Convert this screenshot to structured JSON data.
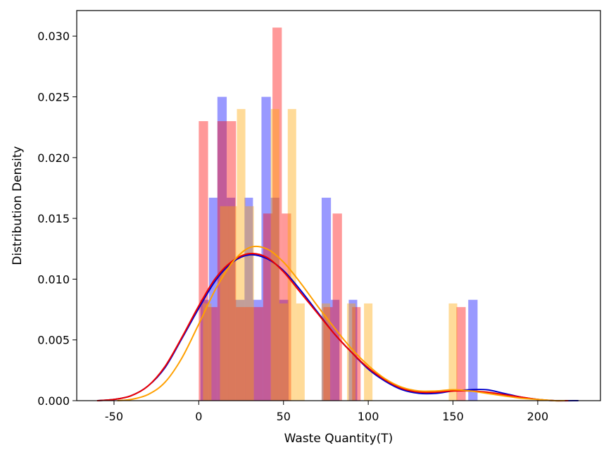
{
  "chart_data": {
    "type": "histogram+kde",
    "xlabel": "Waste Quantity(T)",
    "ylabel": "Distribution Density",
    "xlim": [
      -72,
      237
    ],
    "ylim": [
      0,
      0.0321
    ],
    "x_ticks": [
      -50,
      0,
      50,
      100,
      150,
      200
    ],
    "y_ticks": [
      0.0,
      0.005,
      0.01,
      0.015,
      0.02,
      0.025,
      0.03
    ],
    "x_tick_labels": [
      "-50",
      "0",
      "50",
      "100",
      "150",
      "200"
    ],
    "y_tick_labels": [
      "0.000",
      "0.005",
      "0.010",
      "0.015",
      "0.020",
      "0.025",
      "0.030"
    ],
    "grid": false,
    "series": [
      {
        "color": "#0000ff",
        "hist_opacity": 0.4,
        "bins": [
          {
            "x0": 1.0,
            "x1": 6.0,
            "density": 0.0083
          },
          {
            "x0": 6.0,
            "x1": 11.0,
            "density": 0.0167
          },
          {
            "x0": 11.0,
            "x1": 16.5,
            "density": 0.025
          },
          {
            "x0": 16.5,
            "x1": 21.5,
            "density": 0.0167
          },
          {
            "x0": 21.5,
            "x1": 27.0,
            "density": 0.0083
          },
          {
            "x0": 27.0,
            "x1": 32.0,
            "density": 0.0167
          },
          {
            "x0": 32.0,
            "x1": 37.0,
            "density": 0.0083
          },
          {
            "x0": 37.0,
            "x1": 42.5,
            "density": 0.025
          },
          {
            "x0": 42.5,
            "x1": 47.5,
            "density": 0.0167
          },
          {
            "x0": 47.5,
            "x1": 53.0,
            "density": 0.0083
          },
          {
            "x0": 72.5,
            "x1": 78.0,
            "density": 0.0167
          },
          {
            "x0": 78.0,
            "x1": 83.0,
            "density": 0.0083
          },
          {
            "x0": 88.5,
            "x1": 93.5,
            "density": 0.0083
          },
          {
            "x0": 159.0,
            "x1": 164.5,
            "density": 0.0083
          }
        ],
        "kde_color": "#0000cc",
        "kde": [
          [
            -60,
            0.0
          ],
          [
            -50,
            0.0001
          ],
          [
            -40,
            0.0004
          ],
          [
            -30,
            0.0012
          ],
          [
            -20,
            0.0027
          ],
          [
            -10,
            0.0051
          ],
          [
            0,
            0.0076
          ],
          [
            10,
            0.0099
          ],
          [
            20,
            0.0114
          ],
          [
            30,
            0.012
          ],
          [
            40,
            0.0117
          ],
          [
            50,
            0.0107
          ],
          [
            60,
            0.0091
          ],
          [
            70,
            0.0073
          ],
          [
            80,
            0.0055
          ],
          [
            90,
            0.004
          ],
          [
            100,
            0.0026
          ],
          [
            110,
            0.0016
          ],
          [
            120,
            0.0009
          ],
          [
            130,
            0.0006
          ],
          [
            140,
            0.0006
          ],
          [
            150,
            0.0008
          ],
          [
            160,
            0.0009
          ],
          [
            170,
            0.0009
          ],
          [
            180,
            0.0006
          ],
          [
            190,
            0.0003
          ],
          [
            200,
            0.0001
          ],
          [
            210,
            0.0
          ],
          [
            224,
            0.0
          ]
        ]
      },
      {
        "color": "#ff0000",
        "hist_opacity": 0.4,
        "bins": [
          {
            "x0": 0.0,
            "x1": 5.5,
            "density": 0.023
          },
          {
            "x0": 5.5,
            "x1": 11.0,
            "density": 0.0077
          },
          {
            "x0": 11.0,
            "x1": 16.5,
            "density": 0.023
          },
          {
            "x0": 16.5,
            "x1": 22.0,
            "density": 0.023
          },
          {
            "x0": 22.0,
            "x1": 27.5,
            "density": 0.0077
          },
          {
            "x0": 27.5,
            "x1": 32.5,
            "density": 0.0077
          },
          {
            "x0": 32.5,
            "x1": 38.0,
            "density": 0.0077
          },
          {
            "x0": 38.0,
            "x1": 43.5,
            "density": 0.0154
          },
          {
            "x0": 43.5,
            "x1": 49.0,
            "density": 0.0307
          },
          {
            "x0": 49.0,
            "x1": 54.5,
            "density": 0.0154
          },
          {
            "x0": 73.5,
            "x1": 79.0,
            "density": 0.0077
          },
          {
            "x0": 79.0,
            "x1": 84.5,
            "density": 0.0154
          },
          {
            "x0": 90.5,
            "x1": 95.5,
            "density": 0.0077
          },
          {
            "x0": 152.0,
            "x1": 157.5,
            "density": 0.0077
          }
        ],
        "kde_color": "#ee0000",
        "kde": [
          [
            -60,
            0.0
          ],
          [
            -50,
            0.0001
          ],
          [
            -40,
            0.0004
          ],
          [
            -30,
            0.0012
          ],
          [
            -20,
            0.0028
          ],
          [
            -10,
            0.0052
          ],
          [
            0,
            0.0078
          ],
          [
            10,
            0.0101
          ],
          [
            20,
            0.0115
          ],
          [
            30,
            0.0121
          ],
          [
            40,
            0.0118
          ],
          [
            50,
            0.0106
          ],
          [
            60,
            0.0089
          ],
          [
            70,
            0.0072
          ],
          [
            80,
            0.0055
          ],
          [
            90,
            0.004
          ],
          [
            100,
            0.0027
          ],
          [
            110,
            0.0017
          ],
          [
            120,
            0.001
          ],
          [
            130,
            0.0007
          ],
          [
            140,
            0.0007
          ],
          [
            150,
            0.0008
          ],
          [
            160,
            0.0008
          ],
          [
            170,
            0.0007
          ],
          [
            180,
            0.0005
          ],
          [
            190,
            0.0003
          ],
          [
            200,
            0.0001
          ],
          [
            210,
            0.0
          ],
          [
            218,
            0.0
          ]
        ]
      },
      {
        "color": "#ffa500",
        "hist_opacity": 0.4,
        "bins": [
          {
            "x0": 2.5,
            "x1": 7.5,
            "density": 0.008
          },
          {
            "x0": 12.5,
            "x1": 17.5,
            "density": 0.016
          },
          {
            "x0": 17.5,
            "x1": 22.5,
            "density": 0.016
          },
          {
            "x0": 22.5,
            "x1": 27.5,
            "density": 0.024
          },
          {
            "x0": 27.5,
            "x1": 32.5,
            "density": 0.016
          },
          {
            "x0": 42.5,
            "x1": 47.5,
            "density": 0.024
          },
          {
            "x0": 47.5,
            "x1": 52.5,
            "density": 0.008
          },
          {
            "x0": 52.5,
            "x1": 57.5,
            "density": 0.024
          },
          {
            "x0": 57.5,
            "x1": 62.5,
            "density": 0.008
          },
          {
            "x0": 72.5,
            "x1": 77.5,
            "density": 0.008
          },
          {
            "x0": 87.5,
            "x1": 92.5,
            "density": 0.008
          },
          {
            "x0": 97.5,
            "x1": 102.5,
            "density": 0.008
          },
          {
            "x0": 147.5,
            "x1": 152.5,
            "density": 0.008
          }
        ],
        "kde_color": "#ffa000",
        "kde": [
          [
            -48,
            0.0
          ],
          [
            -40,
            0.0001
          ],
          [
            -30,
            0.0005
          ],
          [
            -20,
            0.0015
          ],
          [
            -10,
            0.0035
          ],
          [
            0,
            0.0063
          ],
          [
            10,
            0.0092
          ],
          [
            20,
            0.0114
          ],
          [
            30,
            0.0126
          ],
          [
            40,
            0.0125
          ],
          [
            50,
            0.0114
          ],
          [
            60,
            0.0097
          ],
          [
            70,
            0.0078
          ],
          [
            80,
            0.006
          ],
          [
            90,
            0.0043
          ],
          [
            100,
            0.0029
          ],
          [
            110,
            0.0018
          ],
          [
            120,
            0.0011
          ],
          [
            130,
            0.0008
          ],
          [
            140,
            0.0008
          ],
          [
            150,
            0.0009
          ],
          [
            160,
            0.0008
          ],
          [
            170,
            0.0006
          ],
          [
            180,
            0.0004
          ],
          [
            190,
            0.0002
          ],
          [
            200,
            0.0001
          ],
          [
            210,
            0.0
          ],
          [
            216,
            0.0
          ]
        ]
      }
    ]
  }
}
